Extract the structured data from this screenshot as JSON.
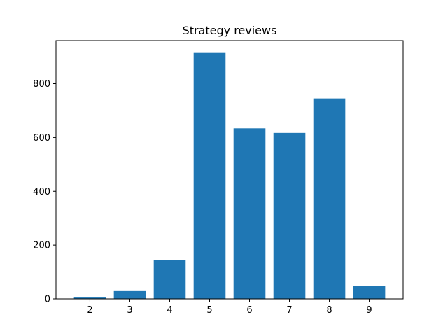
{
  "chart_data": {
    "type": "bar",
    "title": "Strategy reviews",
    "xlabel": "",
    "ylabel": "",
    "categories": [
      "2",
      "3",
      "4",
      "5",
      "6",
      "7",
      "8",
      "9"
    ],
    "values": [
      5,
      29,
      144,
      914,
      634,
      617,
      745,
      47
    ],
    "ylim": [
      0,
      960
    ],
    "yticks": [
      0,
      200,
      400,
      600,
      800
    ],
    "grid": false,
    "bar_color": "#1f77b4"
  }
}
